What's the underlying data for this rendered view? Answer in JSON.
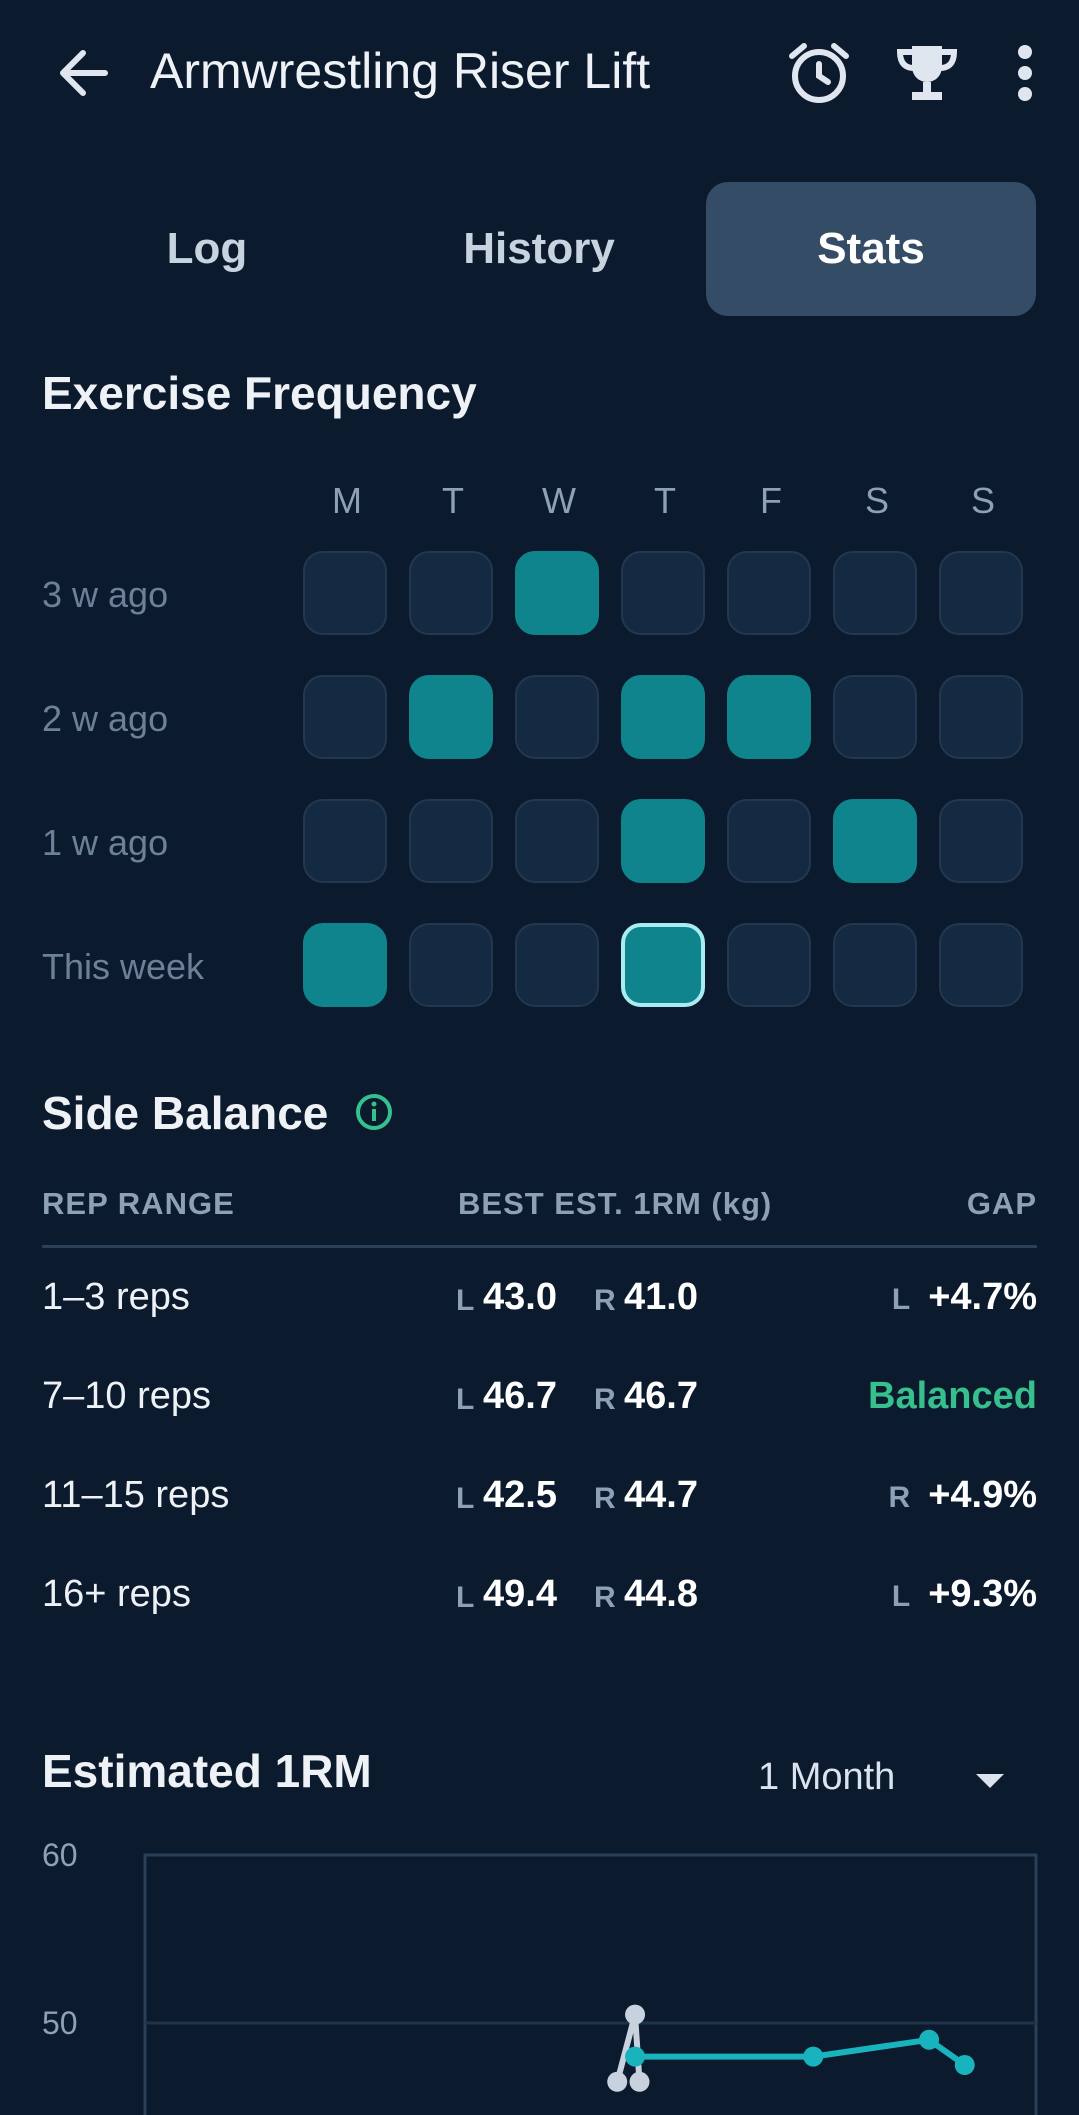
{
  "header": {
    "title": "Armwrestling Riser Lift",
    "icons": [
      "arrow-back-icon",
      "alarm-clock-icon",
      "trophy-icon",
      "more-vertical-icon"
    ]
  },
  "tabs": [
    {
      "label": "Log",
      "active": false
    },
    {
      "label": "History",
      "active": false
    },
    {
      "label": "Stats",
      "active": true
    }
  ],
  "frequency": {
    "title": "Exercise Frequency",
    "days": [
      "M",
      "T",
      "W",
      "T",
      "F",
      "S",
      "S"
    ],
    "weeks": [
      {
        "label": "3 w ago",
        "cells": [
          0,
          0,
          1,
          0,
          0,
          0,
          0
        ]
      },
      {
        "label": "2 w ago",
        "cells": [
          0,
          1,
          0,
          1,
          1,
          0,
          0
        ]
      },
      {
        "label": "1 w ago",
        "cells": [
          0,
          0,
          0,
          1,
          0,
          1,
          0
        ]
      },
      {
        "label": "This week",
        "cells": [
          1,
          0,
          0,
          2,
          0,
          0,
          0
        ]
      }
    ],
    "colors": {
      "active": "#0f848d",
      "inactive": "#142a42",
      "today_outline": "#a8ecf2"
    }
  },
  "side_balance": {
    "title": "Side Balance",
    "columns": {
      "range": "REP RANGE",
      "best": "BEST EST. 1RM (kg)",
      "gap": "GAP"
    },
    "rows": [
      {
        "range": "1–3 reps",
        "left": "43.0",
        "right": "41.0",
        "gap_side": "L",
        "gap": "+4.7%"
      },
      {
        "range": "7–10 reps",
        "left": "46.7",
        "right": "46.7",
        "gap_side": "",
        "gap": "Balanced"
      },
      {
        "range": "11–15 reps",
        "left": "42.5",
        "right": "44.7",
        "gap_side": "R",
        "gap": "+4.9%"
      },
      {
        "range": "16+ reps",
        "left": "49.4",
        "right": "44.8",
        "gap_side": "L",
        "gap": "+9.3%"
      }
    ],
    "tags": {
      "left": "L",
      "right": "R"
    },
    "balanced_color": "#35c08d"
  },
  "estimated_1rm": {
    "title": "Estimated 1RM",
    "range_selected": "1 Month"
  },
  "chart_data": {
    "type": "line",
    "title": "Estimated 1RM",
    "ylim": [
      40,
      60
    ],
    "yticks": [
      60,
      50
    ],
    "grid": true,
    "series": [
      {
        "color": "#c7d2de",
        "points": [
          [
            0.53,
            46.5
          ],
          [
            0.55,
            50.5
          ],
          [
            0.555,
            46.5
          ]
        ]
      },
      {
        "color": "#18b3bd",
        "points": [
          [
            0.55,
            48.0
          ],
          [
            0.75,
            48.0
          ],
          [
            0.88,
            49.0
          ],
          [
            0.92,
            47.5
          ]
        ]
      }
    ]
  }
}
